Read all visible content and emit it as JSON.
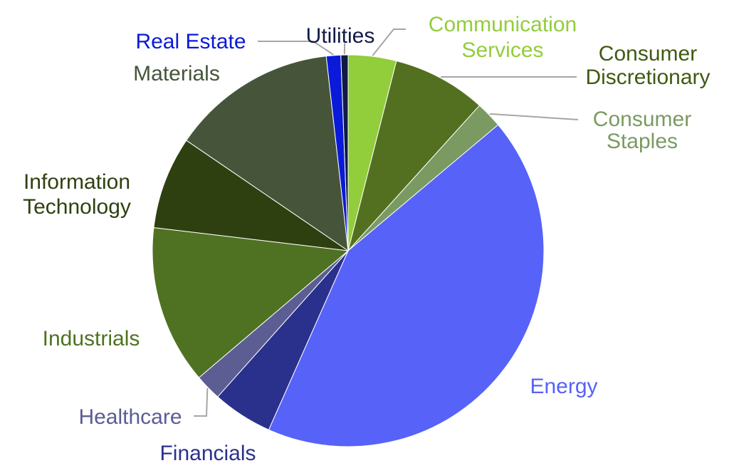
{
  "chart_data": {
    "type": "pie",
    "title": "",
    "start_angle_deg": 0,
    "direction": "clockwise",
    "slices": [
      {
        "label": "Communication Services",
        "value": 4.0,
        "color": "#92cd3c"
      },
      {
        "label": "Consumer Discretionary",
        "value": 7.8,
        "color": "#537020"
      },
      {
        "label": "Consumer Staples",
        "value": 2.2,
        "color": "#7a9a62"
      },
      {
        "label": "Energy",
        "value": 43.1,
        "color": "#5762f8"
      },
      {
        "label": "Financials",
        "value": 5.0,
        "color": "#2a318c"
      },
      {
        "label": "Healthcare",
        "value": 2.2,
        "color": "#5b5d93"
      },
      {
        "label": "Industrials",
        "value": 13.2,
        "color": "#4f7222"
      },
      {
        "label": "Information Technology",
        "value": 7.7,
        "color": "#2f4010"
      },
      {
        "label": "Materials",
        "value": 13.8,
        "color": "#46553a"
      },
      {
        "label": "Real Estate",
        "value": 1.2,
        "color": "#0a1ad8"
      },
      {
        "label": "Utilities",
        "value": 0.6,
        "color": "#101a48"
      }
    ],
    "legend": "none",
    "labels": "outside with leader lines"
  },
  "label_colors": {
    "Communication Services": "#92cd3c",
    "Consumer Discretionary": "#3f5b12",
    "Consumer Staples": "#7a9a62",
    "Energy": "#5762f8",
    "Financials": "#2a318c",
    "Healthcare": "#5b5d93",
    "Industrials": "#4f7222",
    "Information Technology": "#2f4010",
    "Materials": "#46553a",
    "Real Estate": "#0a1ad8",
    "Utilities": "#101a48"
  }
}
